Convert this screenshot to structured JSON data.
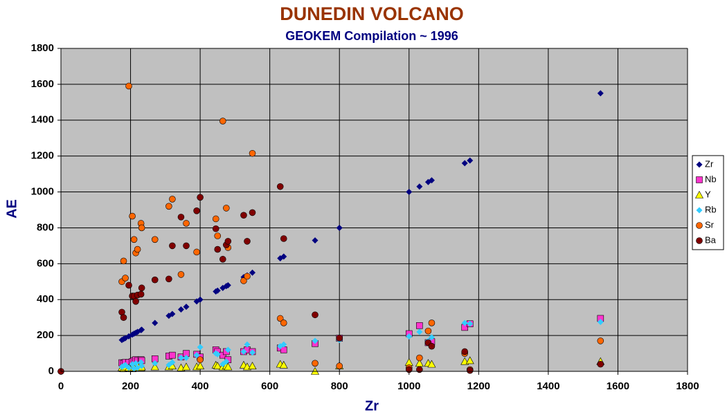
{
  "chart_data": {
    "type": "scatter",
    "title": "DUNEDIN VOLCANO",
    "subtitle": "GEOKEM Compilation ~ 1996",
    "x_label": "Zr",
    "y_label": "AE",
    "xlim": [
      0,
      1800
    ],
    "ylim": [
      0,
      1800
    ],
    "xticks": [
      0,
      200,
      400,
      600,
      800,
      1000,
      1200,
      1400,
      1600,
      1800
    ],
    "yticks": [
      0,
      200,
      400,
      600,
      800,
      1000,
      1200,
      1400,
      1600,
      1800
    ],
    "grid": true,
    "legend": "right",
    "x": [
      0,
      175,
      180,
      185,
      195,
      205,
      210,
      215,
      220,
      230,
      232,
      270,
      310,
      320,
      345,
      360,
      390,
      400,
      445,
      450,
      465,
      475,
      480,
      525,
      535,
      550,
      630,
      640,
      730,
      800,
      1000,
      1030,
      1055,
      1065,
      1160,
      1175,
      1550
    ],
    "series": [
      {
        "name": "Zr",
        "color": "#000080",
        "marker": "diamond",
        "values": [
          0,
          175,
          180,
          185,
          195,
          205,
          210,
          215,
          220,
          230,
          232,
          270,
          310,
          320,
          345,
          360,
          390,
          400,
          445,
          450,
          465,
          475,
          480,
          525,
          535,
          550,
          630,
          640,
          730,
          800,
          1000,
          1030,
          1055,
          1065,
          1160,
          1175,
          1550
        ]
      },
      {
        "name": "Nb",
        "color": "#ff33cc",
        "marker": "square",
        "values": [
          null,
          48,
          45,
          50,
          50,
          55,
          60,
          65,
          60,
          65,
          60,
          70,
          85,
          90,
          80,
          100,
          95,
          80,
          120,
          110,
          90,
          110,
          65,
          110,
          120,
          110,
          130,
          120,
          155,
          185,
          210,
          255,
          160,
          165,
          245,
          265,
          295
        ]
      },
      {
        "name": "Y",
        "color": "#ffff00",
        "marker": "triangle",
        "values": [
          null,
          20,
          15,
          25,
          20,
          15,
          20,
          25,
          30,
          20,
          25,
          25,
          25,
          30,
          20,
          25,
          25,
          30,
          35,
          30,
          25,
          30,
          25,
          35,
          25,
          30,
          40,
          35,
          0,
          30,
          50,
          45,
          45,
          40,
          55,
          60,
          55
        ]
      },
      {
        "name": "Rb",
        "color": "#33ccff",
        "marker": "diamond",
        "values": [
          null,
          25,
          30,
          35,
          20,
          40,
          15,
          45,
          20,
          50,
          30,
          45,
          35,
          50,
          75,
          75,
          90,
          135,
          100,
          95,
          40,
          55,
          120,
          110,
          150,
          105,
          140,
          150,
          170,
          175,
          195,
          220,
          170,
          190,
          270,
          265,
          275
        ]
      },
      {
        "name": "Sr",
        "color": "#ff6600",
        "marker": "circle",
        "values": [
          null,
          500,
          615,
          520,
          1590,
          865,
          735,
          660,
          680,
          825,
          800,
          735,
          920,
          960,
          540,
          825,
          665,
          65,
          850,
          755,
          1395,
          910,
          690,
          505,
          530,
          1215,
          295,
          270,
          45,
          30,
          20,
          75,
          225,
          270,
          100,
          10,
          170
        ]
      },
      {
        "name": "Ba",
        "color": "#800000",
        "marker": "circle",
        "values": [
          0,
          330,
          300,
          null,
          480,
          420,
          420,
          390,
          425,
          430,
          465,
          510,
          515,
          700,
          860,
          700,
          895,
          970,
          795,
          680,
          625,
          705,
          725,
          870,
          725,
          885,
          1030,
          740,
          315,
          185,
          10,
          10,
          160,
          140,
          110,
          5,
          40
        ]
      }
    ]
  }
}
